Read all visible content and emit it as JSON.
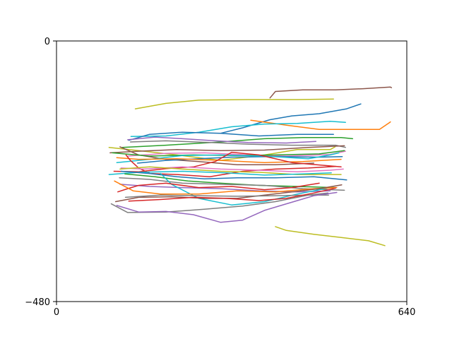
{
  "chart_data": {
    "type": "line",
    "title": "",
    "xlabel": "",
    "ylabel": "",
    "xlim": [
      0,
      640
    ],
    "ylim": [
      -480,
      0
    ],
    "xticks": [
      {
        "value": 0,
        "label": "0"
      },
      {
        "value": 640,
        "label": "640"
      }
    ],
    "yticks": [
      {
        "value": 0,
        "label": "0"
      },
      {
        "value": -480,
        "label": "−480"
      }
    ],
    "grid": false,
    "legend": "none",
    "palette": [
      "#1f77b4",
      "#ff7f0e",
      "#2ca02c",
      "#d62728",
      "#9467bd",
      "#8c564b",
      "#e377c2",
      "#7f7f7f",
      "#bcbd22",
      "#17becf"
    ],
    "series": [
      {
        "color": "#bcbd22",
        "points": [
          [
            144,
            -125
          ],
          [
            200,
            -115
          ],
          [
            260,
            -109
          ],
          [
            350,
            -108
          ],
          [
            440,
            -108
          ],
          [
            506,
            -107
          ]
        ]
      },
      {
        "color": "#8c564b",
        "points": [
          [
            390,
            -105
          ],
          [
            400,
            -93
          ],
          [
            450,
            -90
          ],
          [
            510,
            -90
          ],
          [
            560,
            -88
          ],
          [
            610,
            -85
          ],
          [
            612,
            -86
          ]
        ]
      },
      {
        "color": "#1f77b4",
        "points": [
          [
            300,
            -170
          ],
          [
            340,
            -160
          ],
          [
            390,
            -145
          ],
          [
            430,
            -138
          ],
          [
            480,
            -134
          ],
          [
            530,
            -125
          ],
          [
            556,
            -116
          ]
        ]
      },
      {
        "color": "#ff7f0e",
        "points": [
          [
            355,
            -146
          ],
          [
            420,
            -155
          ],
          [
            480,
            -163
          ],
          [
            540,
            -163
          ],
          [
            590,
            -163
          ],
          [
            609,
            -150
          ],
          [
            610,
            -149
          ]
        ]
      },
      {
        "color": "#17becf",
        "points": [
          [
            136,
            -176
          ],
          [
            200,
            -175
          ],
          [
            260,
            -168
          ],
          [
            320,
            -158
          ],
          [
            380,
            -153
          ],
          [
            440,
            -152
          ],
          [
            500,
            -148
          ],
          [
            528,
            -150
          ]
        ]
      },
      {
        "color": "#1f77b4",
        "points": [
          [
            132,
            -183
          ],
          [
            170,
            -172
          ],
          [
            230,
            -168
          ],
          [
            300,
            -170
          ],
          [
            370,
            -175
          ],
          [
            440,
            -172
          ],
          [
            506,
            -172
          ]
        ]
      },
      {
        "color": "#2ca02c",
        "points": [
          [
            120,
            -196
          ],
          [
            200,
            -192
          ],
          [
            300,
            -186
          ],
          [
            380,
            -180
          ],
          [
            450,
            -178
          ],
          [
            520,
            -178
          ],
          [
            541,
            -180
          ]
        ]
      },
      {
        "color": "#9467bd",
        "points": [
          [
            130,
            -182
          ],
          [
            180,
            -177
          ],
          [
            230,
            -180
          ],
          [
            290,
            -184
          ],
          [
            350,
            -187
          ],
          [
            420,
            -188
          ],
          [
            474,
            -185
          ]
        ]
      },
      {
        "color": "#7f7f7f",
        "points": [
          [
            135,
            -186
          ],
          [
            200,
            -184
          ],
          [
            280,
            -187
          ],
          [
            350,
            -190
          ],
          [
            430,
            -192
          ],
          [
            510,
            -192
          ],
          [
            528,
            -196
          ]
        ]
      },
      {
        "color": "#bcbd22",
        "points": [
          [
            96,
            -196
          ],
          [
            150,
            -202
          ],
          [
            220,
            -210
          ],
          [
            300,
            -220
          ],
          [
            380,
            -210
          ],
          [
            440,
            -200
          ],
          [
            500,
            -200
          ],
          [
            509,
            -195
          ]
        ]
      },
      {
        "color": "#8c564b",
        "points": [
          [
            98,
            -206
          ],
          [
            150,
            -203
          ],
          [
            220,
            -200
          ],
          [
            300,
            -202
          ],
          [
            380,
            -201
          ],
          [
            460,
            -196
          ],
          [
            526,
            -193
          ]
        ]
      },
      {
        "color": "#e377c2",
        "points": [
          [
            130,
            -212
          ],
          [
            200,
            -207
          ],
          [
            270,
            -206
          ],
          [
            350,
            -210
          ],
          [
            420,
            -212
          ],
          [
            500,
            -209
          ],
          [
            528,
            -203
          ]
        ]
      },
      {
        "color": "#8c564b",
        "points": [
          [
            116,
            -195
          ],
          [
            150,
            -210
          ],
          [
            200,
            -218
          ],
          [
            260,
            -222
          ],
          [
            330,
            -228
          ],
          [
            400,
            -228
          ],
          [
            470,
            -225
          ]
        ]
      },
      {
        "color": "#2ca02c",
        "points": [
          [
            102,
            -206
          ],
          [
            170,
            -212
          ],
          [
            250,
            -210
          ],
          [
            330,
            -211
          ],
          [
            400,
            -210
          ],
          [
            480,
            -208
          ],
          [
            526,
            -202
          ]
        ]
      },
      {
        "color": "#1f77b4",
        "points": [
          [
            148,
            -225
          ],
          [
            200,
            -220
          ],
          [
            260,
            -217
          ],
          [
            320,
            -214
          ],
          [
            400,
            -213
          ],
          [
            480,
            -214
          ],
          [
            522,
            -213
          ]
        ]
      },
      {
        "color": "#17becf",
        "points": [
          [
            110,
            -224
          ],
          [
            170,
            -218
          ],
          [
            230,
            -211
          ],
          [
            300,
            -210
          ],
          [
            380,
            -212
          ],
          [
            460,
            -217
          ],
          [
            500,
            -210
          ],
          [
            516,
            -206
          ]
        ]
      },
      {
        "color": "#ff7f0e",
        "points": [
          [
            110,
            -215
          ],
          [
            150,
            -218
          ],
          [
            220,
            -217
          ],
          [
            300,
            -220
          ],
          [
            380,
            -224
          ],
          [
            450,
            -222
          ],
          [
            520,
            -218
          ]
        ]
      },
      {
        "color": "#d62728",
        "points": [
          [
            105,
            -240
          ],
          [
            150,
            -241
          ],
          [
            200,
            -235
          ],
          [
            250,
            -232
          ],
          [
            290,
            -222
          ],
          [
            320,
            -205
          ],
          [
            370,
            -210
          ],
          [
            430,
            -224
          ],
          [
            520,
            -232
          ]
        ]
      },
      {
        "color": "#d62728",
        "points": [
          [
            127,
            -210
          ],
          [
            135,
            -220
          ],
          [
            150,
            -234
          ],
          [
            170,
            -244
          ],
          [
            220,
            -246
          ],
          [
            280,
            -250
          ],
          [
            340,
            -240
          ],
          [
            400,
            -236
          ],
          [
            460,
            -234
          ],
          [
            510,
            -231
          ]
        ]
      },
      {
        "color": "#e377c2",
        "points": [
          [
            118,
            -234
          ],
          [
            160,
            -236
          ],
          [
            230,
            -232
          ],
          [
            300,
            -236
          ],
          [
            370,
            -238
          ],
          [
            440,
            -241
          ],
          [
            500,
            -238
          ],
          [
            524,
            -236
          ]
        ]
      },
      {
        "color": "#bcbd22",
        "points": [
          [
            116,
            -236
          ],
          [
            170,
            -232
          ],
          [
            230,
            -236
          ],
          [
            300,
            -240
          ],
          [
            370,
            -242
          ],
          [
            440,
            -246
          ],
          [
            520,
            -246
          ]
        ]
      },
      {
        "color": "#17becf",
        "points": [
          [
            96,
            -246
          ],
          [
            150,
            -242
          ],
          [
            230,
            -240
          ],
          [
            310,
            -243
          ],
          [
            380,
            -247
          ],
          [
            450,
            -245
          ],
          [
            502,
            -243
          ]
        ]
      },
      {
        "color": "#1f77b4",
        "points": [
          [
            118,
            -240
          ],
          [
            170,
            -244
          ],
          [
            220,
            -250
          ],
          [
            270,
            -254
          ],
          [
            330,
            -252
          ],
          [
            400,
            -252
          ],
          [
            470,
            -250
          ],
          [
            530,
            -256
          ]
        ]
      },
      {
        "color": "#2ca02c",
        "points": [
          [
            125,
            -245
          ],
          [
            180,
            -250
          ],
          [
            240,
            -258
          ],
          [
            300,
            -262
          ],
          [
            370,
            -266
          ],
          [
            440,
            -268
          ],
          [
            510,
            -270
          ]
        ]
      },
      {
        "color": "#7f7f7f",
        "points": [
          [
            115,
            -252
          ],
          [
            170,
            -255
          ],
          [
            230,
            -262
          ],
          [
            300,
            -264
          ],
          [
            380,
            -266
          ],
          [
            450,
            -272
          ],
          [
            526,
            -275
          ]
        ]
      },
      {
        "color": "#9467bd",
        "points": [
          [
            116,
            -264
          ],
          [
            170,
            -268
          ],
          [
            230,
            -270
          ],
          [
            300,
            -272
          ],
          [
            370,
            -276
          ],
          [
            440,
            -278
          ],
          [
            500,
            -276
          ]
        ]
      },
      {
        "color": "#17becf",
        "points": [
          [
            190,
            -244
          ],
          [
            210,
            -264
          ],
          [
            260,
            -290
          ],
          [
            320,
            -302
          ],
          [
            380,
            -296
          ],
          [
            440,
            -282
          ],
          [
            500,
            -270
          ]
        ]
      },
      {
        "color": "#d62728",
        "points": [
          [
            112,
            -278
          ],
          [
            130,
            -272
          ],
          [
            150,
            -266
          ],
          [
            200,
            -262
          ],
          [
            260,
            -270
          ],
          [
            320,
            -268
          ],
          [
            380,
            -274
          ],
          [
            430,
            -270
          ],
          [
            480,
            -262
          ]
        ]
      },
      {
        "color": "#ff7f0e",
        "points": [
          [
            106,
            -258
          ],
          [
            140,
            -276
          ],
          [
            190,
            -282
          ],
          [
            260,
            -282
          ],
          [
            330,
            -276
          ],
          [
            400,
            -278
          ],
          [
            470,
            -272
          ],
          [
            512,
            -270
          ]
        ]
      },
      {
        "color": "#8c564b",
        "points": [
          [
            108,
            -296
          ],
          [
            150,
            -288
          ],
          [
            210,
            -287
          ],
          [
            270,
            -290
          ],
          [
            330,
            -290
          ],
          [
            380,
            -284
          ],
          [
            430,
            -278
          ],
          [
            480,
            -272
          ],
          [
            521,
            -265
          ]
        ]
      },
      {
        "color": "#7f7f7f",
        "points": [
          [
            126,
            -288
          ],
          [
            190,
            -284
          ],
          [
            260,
            -285
          ],
          [
            330,
            -286
          ],
          [
            400,
            -285
          ],
          [
            460,
            -284
          ],
          [
            497,
            -284
          ]
        ]
      },
      {
        "color": "#d62728",
        "points": [
          [
            132,
            -295
          ],
          [
            190,
            -292
          ],
          [
            250,
            -288
          ],
          [
            310,
            -290
          ],
          [
            370,
            -294
          ],
          [
            420,
            -290
          ],
          [
            470,
            -280
          ],
          [
            510,
            -271
          ]
        ]
      },
      {
        "color": "#7f7f7f",
        "points": [
          [
            100,
            -300
          ],
          [
            130,
            -316
          ],
          [
            200,
            -315
          ],
          [
            270,
            -310
          ],
          [
            340,
            -304
          ],
          [
            400,
            -296
          ],
          [
            460,
            -284
          ],
          [
            496,
            -280
          ]
        ]
      },
      {
        "color": "#9467bd",
        "points": [
          [
            110,
            -303
          ],
          [
            150,
            -315
          ],
          [
            200,
            -314
          ],
          [
            250,
            -320
          ],
          [
            300,
            -334
          ],
          [
            340,
            -330
          ],
          [
            380,
            -312
          ],
          [
            420,
            -300
          ],
          [
            470,
            -285
          ],
          [
            512,
            -279
          ]
        ]
      },
      {
        "color": "#bcbd22",
        "points": [
          [
            400,
            -342
          ],
          [
            420,
            -349
          ],
          [
            470,
            -356
          ],
          [
            520,
            -362
          ],
          [
            570,
            -368
          ],
          [
            600,
            -377
          ]
        ]
      }
    ]
  }
}
